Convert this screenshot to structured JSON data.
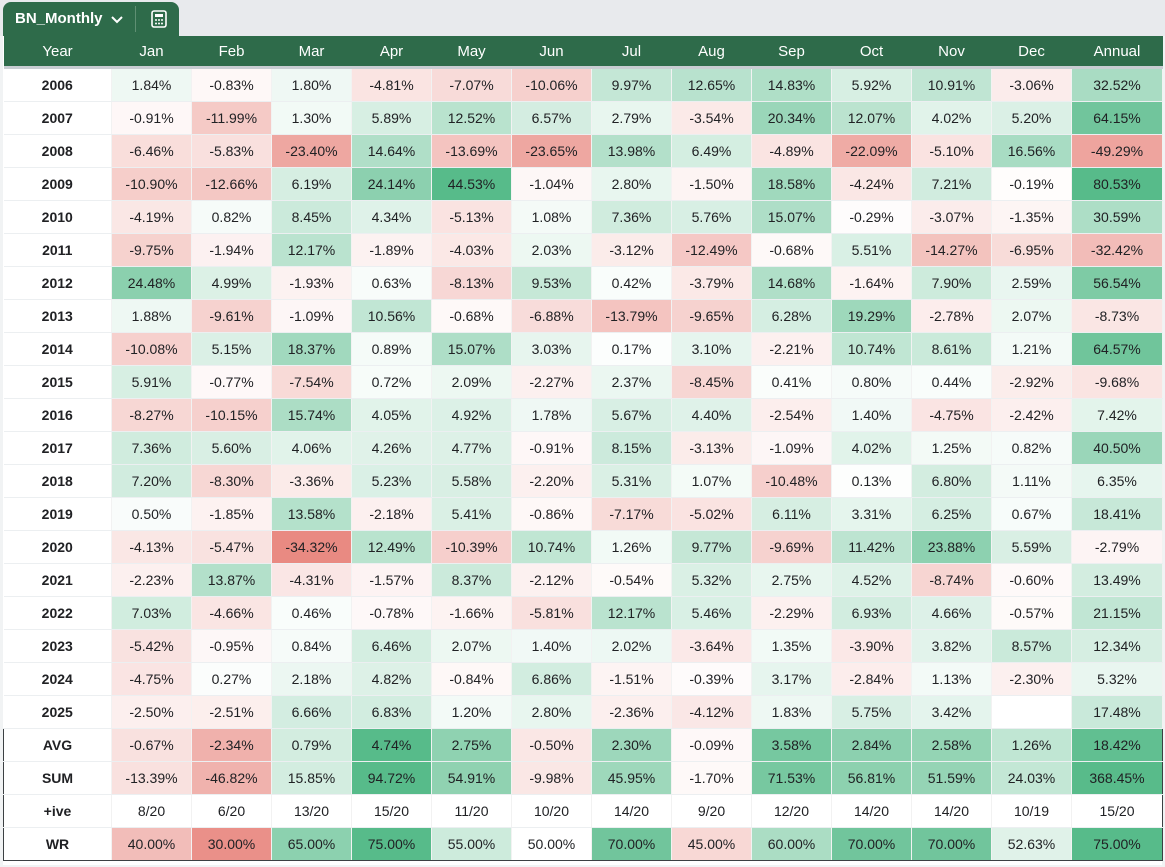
{
  "sheet": {
    "tab_name": "BN_Monthly"
  },
  "colors": {
    "header": "#2e6b4a",
    "positive": "#57bb8a",
    "negative": "#e67c73"
  },
  "headers": [
    "Year",
    "Jan",
    "Feb",
    "Mar",
    "Apr",
    "May",
    "Jun",
    "Jul",
    "Aug",
    "Sep",
    "Oct",
    "Nov",
    "Dec",
    "Annual"
  ],
  "rows": [
    [
      "2006",
      "1.84%",
      "-0.83%",
      "1.80%",
      "-4.81%",
      "-7.07%",
      "-10.06%",
      "9.97%",
      "12.65%",
      "14.83%",
      "5.92%",
      "10.91%",
      "-3.06%",
      "32.52%"
    ],
    [
      "2007",
      "-0.91%",
      "-11.99%",
      "1.30%",
      "5.89%",
      "12.52%",
      "6.57%",
      "2.79%",
      "-3.54%",
      "20.34%",
      "12.07%",
      "4.02%",
      "5.20%",
      "64.15%"
    ],
    [
      "2008",
      "-6.46%",
      "-5.83%",
      "-23.40%",
      "14.64%",
      "-13.69%",
      "-23.65%",
      "13.98%",
      "6.49%",
      "-4.89%",
      "-22.09%",
      "-5.10%",
      "16.56%",
      "-49.29%"
    ],
    [
      "2009",
      "-10.90%",
      "-12.66%",
      "6.19%",
      "24.14%",
      "44.53%",
      "-1.04%",
      "2.80%",
      "-1.50%",
      "18.58%",
      "-4.24%",
      "7.21%",
      "-0.19%",
      "80.53%"
    ],
    [
      "2010",
      "-4.19%",
      "0.82%",
      "8.45%",
      "4.34%",
      "-5.13%",
      "1.08%",
      "7.36%",
      "5.76%",
      "15.07%",
      "-0.29%",
      "-3.07%",
      "-1.35%",
      "30.59%"
    ],
    [
      "2011",
      "-9.75%",
      "-1.94%",
      "12.17%",
      "-1.89%",
      "-4.03%",
      "2.03%",
      "-3.12%",
      "-12.49%",
      "-0.68%",
      "5.51%",
      "-14.27%",
      "-6.95%",
      "-32.42%"
    ],
    [
      "2012",
      "24.48%",
      "4.99%",
      "-1.93%",
      "0.63%",
      "-8.13%",
      "9.53%",
      "0.42%",
      "-3.79%",
      "14.68%",
      "-1.64%",
      "7.90%",
      "2.59%",
      "56.54%"
    ],
    [
      "2013",
      "1.88%",
      "-9.61%",
      "-1.09%",
      "10.56%",
      "-0.68%",
      "-6.88%",
      "-13.79%",
      "-9.65%",
      "6.28%",
      "19.29%",
      "-2.78%",
      "2.07%",
      "-8.73%"
    ],
    [
      "2014",
      "-10.08%",
      "5.15%",
      "18.37%",
      "0.89%",
      "15.07%",
      "3.03%",
      "0.17%",
      "3.10%",
      "-2.21%",
      "10.74%",
      "8.61%",
      "1.21%",
      "64.57%"
    ],
    [
      "2015",
      "5.91%",
      "-0.77%",
      "-7.54%",
      "0.72%",
      "2.09%",
      "-2.27%",
      "2.37%",
      "-8.45%",
      "0.41%",
      "0.80%",
      "0.44%",
      "-2.92%",
      "-9.68%"
    ],
    [
      "2016",
      "-8.27%",
      "-10.15%",
      "15.74%",
      "4.05%",
      "4.92%",
      "1.78%",
      "5.67%",
      "4.40%",
      "-2.54%",
      "1.40%",
      "-4.75%",
      "-2.42%",
      "7.42%"
    ],
    [
      "2017",
      "7.36%",
      "5.60%",
      "4.06%",
      "4.26%",
      "4.77%",
      "-0.91%",
      "8.15%",
      "-3.13%",
      "-1.09%",
      "4.02%",
      "1.25%",
      "0.82%",
      "40.50%"
    ],
    [
      "2018",
      "7.20%",
      "-8.30%",
      "-3.36%",
      "5.23%",
      "5.58%",
      "-2.20%",
      "5.31%",
      "1.07%",
      "-10.48%",
      "0.13%",
      "6.80%",
      "1.11%",
      "6.35%"
    ],
    [
      "2019",
      "0.50%",
      "-1.85%",
      "13.58%",
      "-2.18%",
      "5.41%",
      "-0.86%",
      "-7.17%",
      "-5.02%",
      "6.11%",
      "3.31%",
      "6.25%",
      "0.67%",
      "18.41%"
    ],
    [
      "2020",
      "-4.13%",
      "-5.47%",
      "-34.32%",
      "12.49%",
      "-10.39%",
      "10.74%",
      "1.26%",
      "9.77%",
      "-9.69%",
      "11.42%",
      "23.88%",
      "5.59%",
      "-2.79%"
    ],
    [
      "2021",
      "-2.23%",
      "13.87%",
      "-4.31%",
      "-1.57%",
      "8.37%",
      "-2.12%",
      "-0.54%",
      "5.32%",
      "2.75%",
      "4.52%",
      "-8.74%",
      "-0.60%",
      "13.49%"
    ],
    [
      "2022",
      "7.03%",
      "-4.66%",
      "0.46%",
      "-0.78%",
      "-1.66%",
      "-5.81%",
      "12.17%",
      "5.46%",
      "-2.29%",
      "6.93%",
      "4.66%",
      "-0.57%",
      "21.15%"
    ],
    [
      "2023",
      "-5.42%",
      "-0.95%",
      "0.84%",
      "6.46%",
      "2.07%",
      "1.40%",
      "2.02%",
      "-3.64%",
      "1.35%",
      "-3.90%",
      "3.82%",
      "8.57%",
      "12.34%"
    ],
    [
      "2024",
      "-4.75%",
      "0.27%",
      "2.18%",
      "4.82%",
      "-0.84%",
      "6.86%",
      "-1.51%",
      "-0.39%",
      "3.17%",
      "-2.84%",
      "1.13%",
      "-2.30%",
      "5.32%"
    ],
    [
      "2025",
      "-2.50%",
      "-2.51%",
      "6.66%",
      "6.83%",
      "1.20%",
      "2.80%",
      "-2.36%",
      "-4.12%",
      "1.83%",
      "5.75%",
      "3.42%",
      "",
      "17.48%"
    ]
  ],
  "summary": [
    [
      "AVG",
      "-0.67%",
      "-2.34%",
      "0.79%",
      "4.74%",
      "2.75%",
      "-0.50%",
      "2.30%",
      "-0.09%",
      "3.58%",
      "2.84%",
      "2.58%",
      "1.26%",
      "18.42%"
    ],
    [
      "SUM",
      "-13.39%",
      "-46.82%",
      "15.85%",
      "94.72%",
      "54.91%",
      "-9.98%",
      "45.95%",
      "-1.70%",
      "71.53%",
      "56.81%",
      "51.59%",
      "24.03%",
      "368.45%"
    ],
    [
      "+ive",
      "8/20",
      "6/20",
      "13/20",
      "15/20",
      "11/20",
      "10/20",
      "14/20",
      "9/20",
      "12/20",
      "14/20",
      "14/20",
      "10/19",
      "15/20"
    ],
    [
      "WR",
      "40.00%",
      "30.00%",
      "65.00%",
      "75.00%",
      "55.00%",
      "50.00%",
      "70.00%",
      "45.00%",
      "60.00%",
      "70.00%",
      "70.00%",
      "52.63%",
      "75.00%"
    ]
  ]
}
